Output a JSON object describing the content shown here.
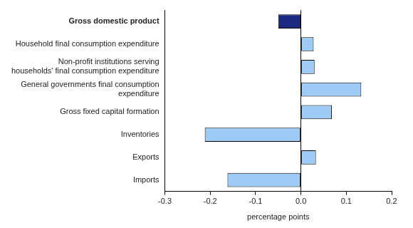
{
  "chart_data": {
    "type": "bar",
    "orientation": "horizontal",
    "categories": [
      "Gross domestic product",
      "Household final consumption expenditure",
      [
        "Non-profit institutions serving",
        "households' final consumption expenditure"
      ],
      [
        "General governments final consumption",
        "expenditure"
      ],
      "Gross fixed capital formation",
      "Inventories",
      "Exports",
      "Imports"
    ],
    "values": [
      -0.05,
      0.028,
      0.03,
      0.133,
      0.068,
      -0.212,
      0.033,
      -0.162
    ],
    "colors": [
      "#1b2a80",
      "#9ecbf5",
      "#9ecbf5",
      "#9ecbf5",
      "#9ecbf5",
      "#9ecbf5",
      "#9ecbf5",
      "#9ecbf5"
    ],
    "x_label": "percentage points",
    "xlim": [
      -0.3,
      0.2
    ],
    "xticks": [
      -0.3,
      -0.2,
      -0.1,
      {
        "value": 0,
        "label": "0.0"
      },
      0.1,
      0.2
    ],
    "grid": false
  }
}
